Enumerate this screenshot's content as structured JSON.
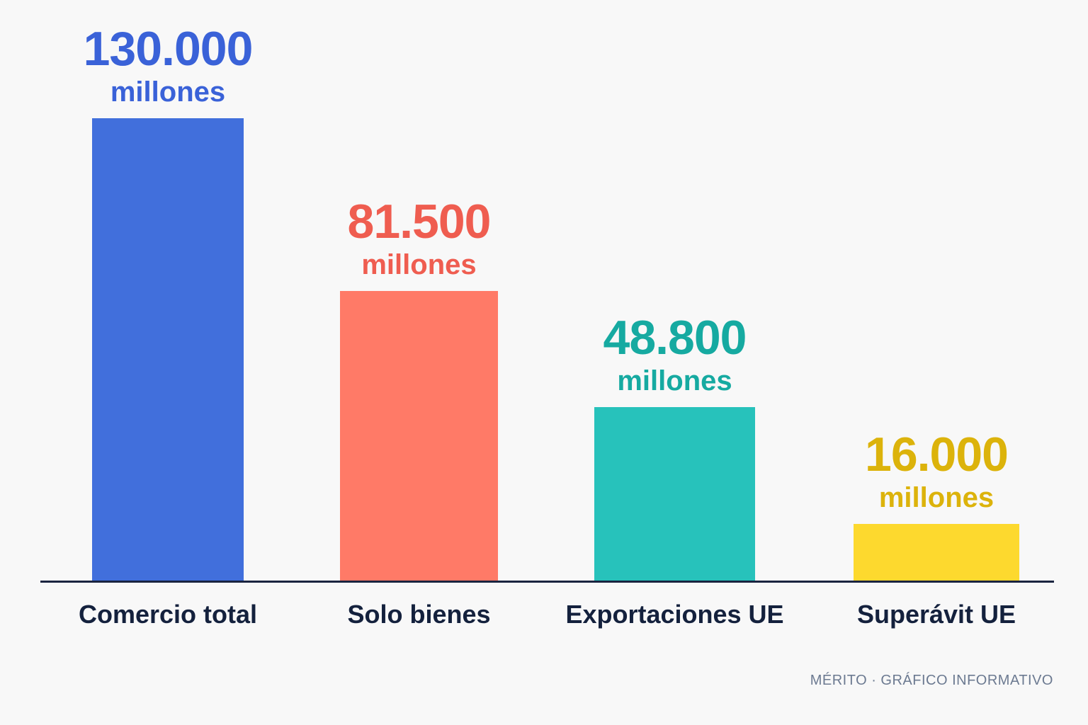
{
  "chart_data": {
    "type": "bar",
    "categories": [
      "Comercio total",
      "Solo bienes",
      "Exportaciones UE",
      "Superávit UE"
    ],
    "values": [
      130000,
      81500,
      48800,
      16000
    ],
    "value_labels": [
      "130.000",
      "81.500",
      "48.800",
      "16.000"
    ],
    "unit_label": "millones",
    "colors": [
      "#416fdc",
      "#ff7a67",
      "#27c2bb",
      "#fdd92e"
    ],
    "label_colors": [
      "#3a62d8",
      "#ef5d50",
      "#16aaa1",
      "#dcb30b"
    ],
    "ylim": [
      0,
      130000
    ],
    "grid": false,
    "legend": "none"
  },
  "footer": "MÉRITO · GRÁFICO INFORMATIVO"
}
